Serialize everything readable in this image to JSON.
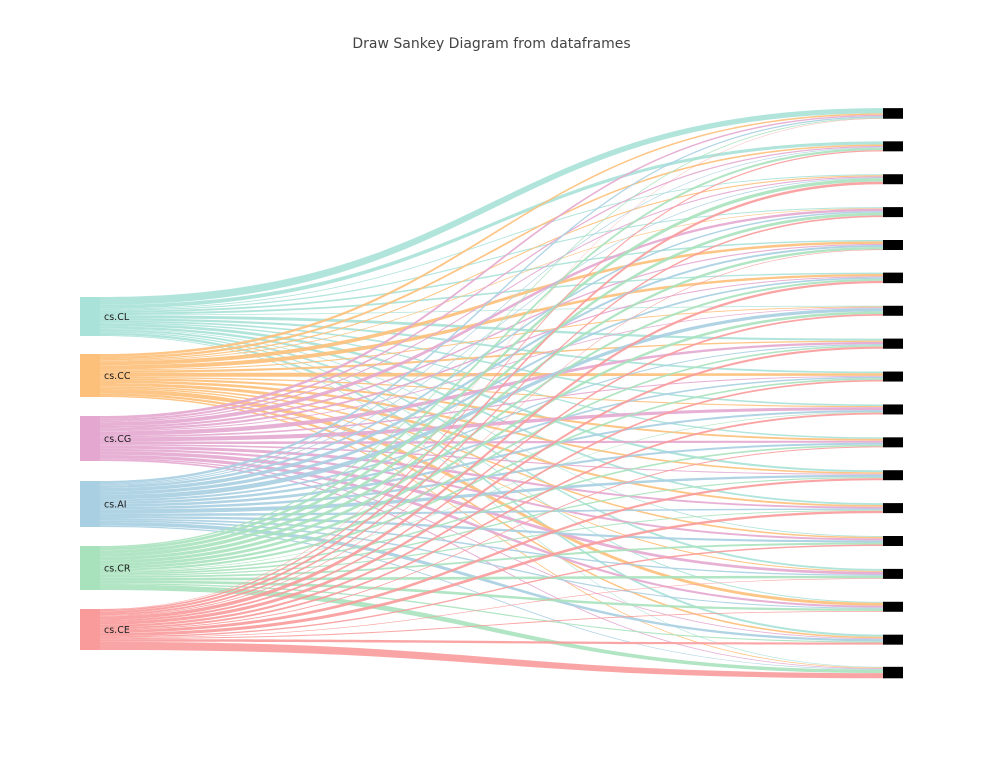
{
  "title": "Draw Sankey Diagram from dataframes",
  "chart_data": {
    "type": "sankey",
    "title": "Draw Sankey Diagram from dataframes",
    "source_nodes": [
      {
        "label": "cs.CL",
        "color": "#a8e2d8"
      },
      {
        "label": "cs.CC",
        "color": "#fdc07a"
      },
      {
        "label": "cs.CG",
        "color": "#e4a8d0"
      },
      {
        "label": "cs.AI",
        "color": "#a8cfe2"
      },
      {
        "label": "cs.CR",
        "color": "#a8e2bd"
      },
      {
        "label": "cs.CE",
        "color": "#f99b9b"
      }
    ],
    "target_node_count": 18,
    "target_node_color": "#000000"
  }
}
